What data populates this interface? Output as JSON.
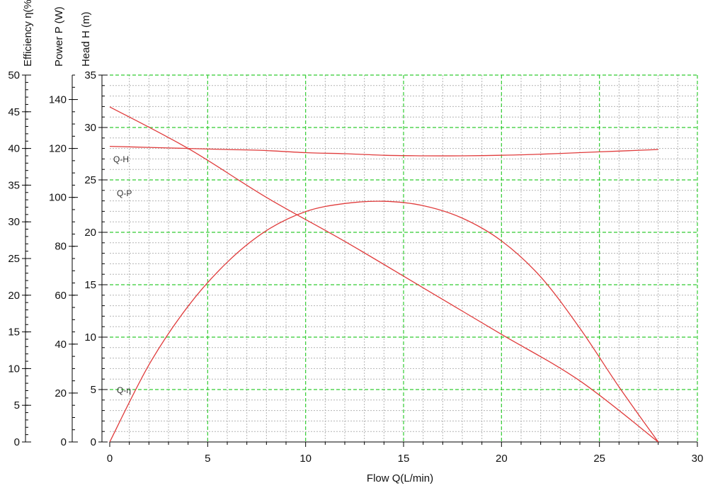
{
  "chart_data": {
    "type": "line",
    "xlabel": "Flow Q(L/min)",
    "x_ticks": [
      "0",
      "5",
      "10",
      "15",
      "20",
      "25",
      "30"
    ],
    "xlim": [
      0,
      30
    ],
    "grid": true,
    "colors": {
      "curve": "#e03c3c",
      "major_grid": "#33cc33",
      "minor_grid": "#b4b4b4",
      "axis": "#000000"
    },
    "axes": [
      {
        "id": "efficiency",
        "label": "Efficiency η(%)",
        "ylim": [
          0,
          50
        ],
        "ticks": [
          "0",
          "5",
          "10",
          "15",
          "20",
          "25",
          "30",
          "35",
          "40",
          "45",
          "50"
        ]
      },
      {
        "id": "power",
        "label": "Power P (W)",
        "ylim": [
          0,
          150
        ],
        "ticks": [
          "0",
          "20",
          "40",
          "60",
          "80",
          "100",
          "120",
          "140"
        ]
      },
      {
        "id": "head",
        "label": "Head H (m)",
        "ylim": [
          0,
          35
        ],
        "ticks": [
          "0",
          "5",
          "10",
          "15",
          "20",
          "25",
          "30",
          "35"
        ]
      }
    ],
    "series": [
      {
        "name": "Q-H",
        "axis": "head",
        "x": [
          0,
          2,
          4,
          6,
          8,
          10,
          12,
          14,
          16,
          18,
          20,
          22,
          24,
          26,
          28
        ],
        "y": [
          28.2,
          28.1,
          28.0,
          27.9,
          27.8,
          27.6,
          27.5,
          27.35,
          27.3,
          27.3,
          27.35,
          27.45,
          27.6,
          27.75,
          27.9
        ]
      },
      {
        "name": "Q-P",
        "axis": "power",
        "x": [
          0,
          4,
          8,
          12,
          16,
          20,
          24,
          28
        ],
        "y": [
          137,
          120,
          100,
          82,
          63,
          44,
          25,
          0
        ]
      },
      {
        "name": "Q-η",
        "axis": "efficiency",
        "x": [
          0,
          2,
          4,
          6,
          8,
          10,
          12,
          14,
          16,
          18,
          20,
          22,
          24,
          26,
          28
        ],
        "y": [
          0,
          10.5,
          18.5,
          24.5,
          28.8,
          31.4,
          32.5,
          32.8,
          32.2,
          30.5,
          27.4,
          22.5,
          15.5,
          7.5,
          0
        ]
      }
    ]
  }
}
